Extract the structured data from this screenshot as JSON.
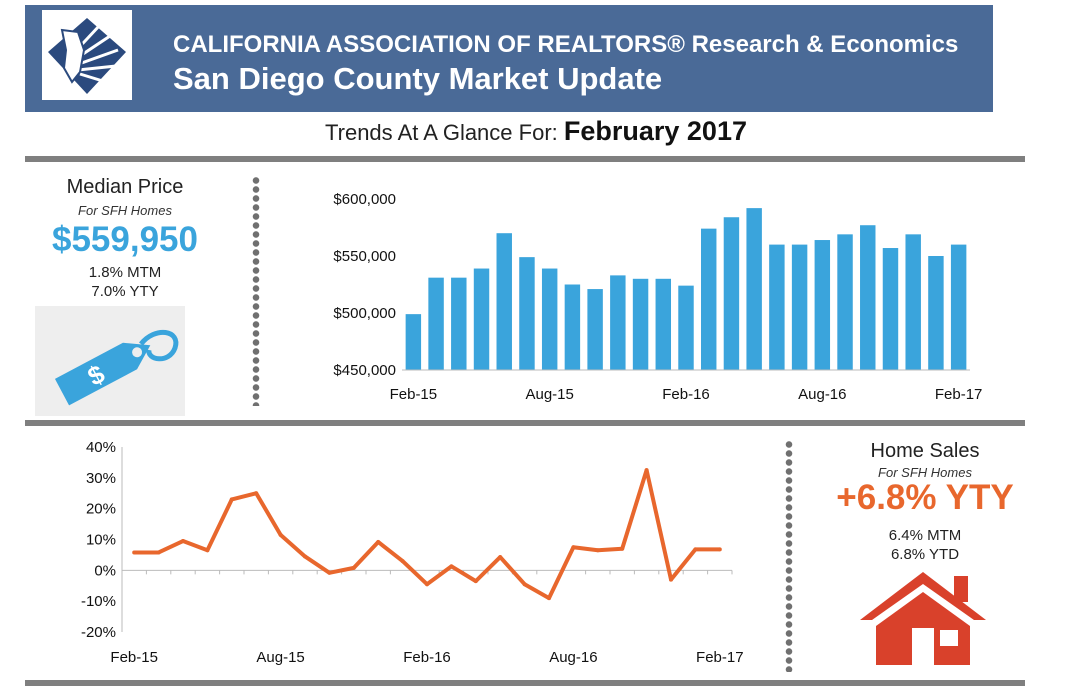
{
  "header": {
    "line1": "CALIFORNIA ASSOCIATION OF REALTORS® Research & Economics",
    "line2": "San Diego County Market Update"
  },
  "trend": {
    "prefix": "Trends At A Glance For: ",
    "month": "February 2017"
  },
  "median_panel": {
    "title": "Median Price",
    "subtitle": "For SFH Homes",
    "value": "$559,950",
    "mtm": "1.8% MTM",
    "yty": "7.0% YTY",
    "icon": "price-tag-icon",
    "color": "#3aa4dc"
  },
  "sales_panel": {
    "title": "Home Sales",
    "subtitle": "For SFH Homes",
    "value": "+6.8% YTY",
    "mtm": "6.4% MTM",
    "ytd": "6.8% YTD",
    "icon": "house-icon",
    "color": "#e8672d"
  },
  "chart_data": [
    {
      "type": "bar",
      "categories": [
        "Feb-15",
        "Mar-15",
        "Apr-15",
        "May-15",
        "Jun-15",
        "Jul-15",
        "Aug-15",
        "Sep-15",
        "Oct-15",
        "Nov-15",
        "Dec-15",
        "Jan-16",
        "Feb-16",
        "Mar-16",
        "Apr-16",
        "May-16",
        "Jun-16",
        "Jul-16",
        "Aug-16",
        "Sep-16",
        "Oct-16",
        "Nov-16",
        "Dec-16",
        "Jan-17",
        "Feb-17"
      ],
      "values": [
        499000,
        531000,
        531000,
        539000,
        570000,
        549000,
        539000,
        525000,
        521000,
        533000,
        530000,
        530000,
        524000,
        574000,
        584000,
        592000,
        560000,
        560000,
        564000,
        569000,
        577000,
        557000,
        569000,
        550000,
        560000
      ],
      "tick_labels": [
        "Feb-15",
        "Aug-15",
        "Feb-16",
        "Aug-16",
        "Feb-17"
      ],
      "y_tick_labels": [
        "$450,000",
        "$500,000",
        "$550,000",
        "$600,000"
      ],
      "ylim": [
        450000,
        600000
      ],
      "color": "#3aa4dc",
      "grid": false
    },
    {
      "type": "line",
      "categories": [
        "Feb-15",
        "Mar-15",
        "Apr-15",
        "May-15",
        "Jun-15",
        "Jul-15",
        "Aug-15",
        "Sep-15",
        "Oct-15",
        "Nov-15",
        "Dec-15",
        "Jan-16",
        "Feb-16",
        "Mar-16",
        "Apr-16",
        "May-16",
        "Jun-16",
        "Jul-16",
        "Aug-16",
        "Sep-16",
        "Oct-16",
        "Nov-16",
        "Dec-16",
        "Jan-17",
        "Feb-17"
      ],
      "values": [
        5.8,
        5.8,
        9.5,
        6.5,
        23,
        25,
        11.5,
        4.5,
        -0.8,
        0.8,
        9.2,
        3,
        -4.5,
        1.3,
        -3.5,
        4.3,
        -4.5,
        -9,
        7.5,
        6.5,
        7,
        32.5,
        -3,
        6.8,
        6.8
      ],
      "tick_labels": [
        "Feb-15",
        "Aug-15",
        "Feb-16",
        "Aug-16",
        "Feb-17"
      ],
      "y_tick_labels": [
        "-20%",
        "-10%",
        "0%",
        "10%",
        "20%",
        "30%",
        "40%"
      ],
      "ylim": [
        -20,
        40
      ],
      "color": "#e8672d",
      "grid": false
    }
  ]
}
